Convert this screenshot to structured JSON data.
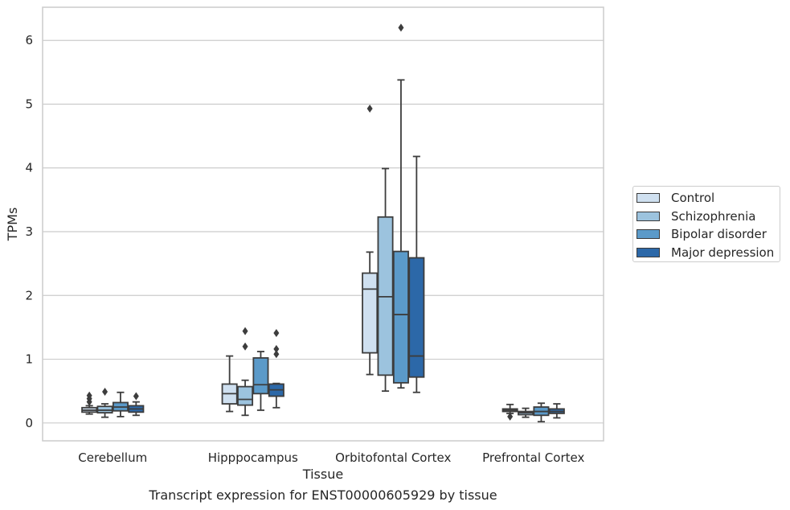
{
  "chart_data": {
    "type": "box",
    "title": "Transcript expression for ENST00000605929 by tissue",
    "xlabel": "Tissue",
    "ylabel": "TPMs",
    "ylim": [
      -0.28,
      6.52
    ],
    "yticks": [
      0,
      1,
      2,
      3,
      4,
      5,
      6
    ],
    "grid": true,
    "legend_position": "center-right",
    "categories": [
      "Cerebellum",
      "Hipppocampus",
      "Orbitofontal Cortex",
      "Prefrontal Cortex"
    ],
    "series": [
      {
        "name": "Control",
        "color": "#cfe0f0",
        "boxes": [
          {
            "whislo": 0.14,
            "q1": 0.17,
            "med": 0.2,
            "q3": 0.24,
            "whishi": 0.27,
            "fliers": [
              0.33,
              0.38,
              0.43
            ]
          },
          {
            "whislo": 0.18,
            "q1": 0.3,
            "med": 0.46,
            "q3": 0.61,
            "whishi": 1.05,
            "fliers": []
          },
          {
            "whislo": 0.76,
            "q1": 1.1,
            "med": 2.1,
            "q3": 2.35,
            "whishi": 2.68,
            "fliers": [
              4.93
            ]
          },
          {
            "whislo": 0.15,
            "q1": 0.18,
            "med": 0.2,
            "q3": 0.22,
            "whishi": 0.29,
            "fliers": [
              0.1
            ]
          }
        ]
      },
      {
        "name": "Schizophrenia",
        "color": "#9cc3de",
        "boxes": [
          {
            "whislo": 0.09,
            "q1": 0.16,
            "med": 0.2,
            "q3": 0.26,
            "whishi": 0.3,
            "fliers": [
              0.49
            ]
          },
          {
            "whislo": 0.12,
            "q1": 0.28,
            "med": 0.37,
            "q3": 0.57,
            "whishi": 0.67,
            "fliers": [
              1.2,
              1.44
            ]
          },
          {
            "whislo": 0.5,
            "q1": 0.75,
            "med": 1.98,
            "q3": 3.23,
            "whishi": 3.99,
            "fliers": []
          },
          {
            "whislo": 0.09,
            "q1": 0.13,
            "med": 0.16,
            "q3": 0.18,
            "whishi": 0.23,
            "fliers": []
          }
        ]
      },
      {
        "name": "Bipolar disorder",
        "color": "#5b9ac9",
        "boxes": [
          {
            "whislo": 0.1,
            "q1": 0.19,
            "med": 0.25,
            "q3": 0.32,
            "whishi": 0.48,
            "fliers": []
          },
          {
            "whislo": 0.2,
            "q1": 0.46,
            "med": 0.6,
            "q3": 1.02,
            "whishi": 1.12,
            "fliers": []
          },
          {
            "whislo": 0.55,
            "q1": 0.63,
            "med": 1.7,
            "q3": 2.69,
            "whishi": 5.38,
            "fliers": [
              6.2
            ]
          },
          {
            "whislo": 0.02,
            "q1": 0.12,
            "med": 0.18,
            "q3": 0.25,
            "whishi": 0.31,
            "fliers": []
          }
        ]
      },
      {
        "name": "Major depression",
        "color": "#2c68a8",
        "boxes": [
          {
            "whislo": 0.12,
            "q1": 0.17,
            "med": 0.22,
            "q3": 0.27,
            "whishi": 0.33,
            "fliers": [
              0.42
            ]
          },
          {
            "whislo": 0.24,
            "q1": 0.42,
            "med": 0.52,
            "q3": 0.61,
            "whishi": 0.62,
            "fliers": [
              1.08,
              1.16,
              1.41
            ]
          },
          {
            "whislo": 0.48,
            "q1": 0.72,
            "med": 1.05,
            "q3": 2.59,
            "whishi": 4.18,
            "fliers": []
          },
          {
            "whislo": 0.08,
            "q1": 0.15,
            "med": 0.18,
            "q3": 0.22,
            "whishi": 0.3,
            "fliers": []
          }
        ]
      }
    ]
  }
}
